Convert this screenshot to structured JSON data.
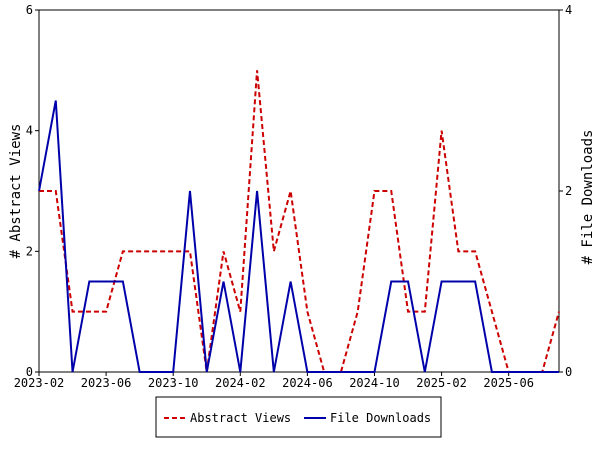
{
  "chart_data": {
    "type": "line",
    "x_start": "2023-02",
    "x": [
      "2023-02",
      "2023-03",
      "2023-04",
      "2023-05",
      "2023-06",
      "2023-07",
      "2023-08",
      "2023-09",
      "2023-10",
      "2023-11",
      "2023-12",
      "2024-01",
      "2024-02",
      "2024-03",
      "2024-04",
      "2024-05",
      "2024-06",
      "2024-07",
      "2024-08",
      "2024-09",
      "2024-10",
      "2024-11",
      "2024-12",
      "2025-01",
      "2025-02",
      "2025-03",
      "2025-04",
      "2025-05",
      "2025-06",
      "2025-07",
      "2025-08",
      "2025-09"
    ],
    "x_ticks": [
      "2023-02",
      "2023-06",
      "2023-10",
      "2024-02",
      "2024-06",
      "2024-10",
      "2025-02",
      "2025-06"
    ],
    "series": [
      {
        "name": "Abstract Views",
        "axis": "left",
        "color": "#cc0000",
        "style": "dashed",
        "values": [
          3,
          3,
          1,
          1,
          1,
          2,
          2,
          2,
          2,
          2,
          0,
          2,
          1,
          5,
          2,
          3,
          1,
          0,
          0,
          1,
          3,
          3,
          1,
          1,
          4,
          2,
          2,
          1,
          0,
          0,
          0,
          1
        ]
      },
      {
        "name": "File Downloads",
        "axis": "right",
        "color": "#0000aa",
        "style": "solid",
        "values": [
          2,
          3,
          0,
          1,
          1,
          1,
          0,
          0,
          0,
          2,
          0,
          1,
          0,
          2,
          0,
          1,
          0,
          0,
          0,
          0,
          0,
          1,
          1,
          0,
          1,
          1,
          1,
          0,
          0,
          0,
          0,
          0
        ]
      }
    ],
    "ylabel": "# Abstract Views",
    "ylabel_right": "# File Downloads",
    "ylim": [
      0,
      6
    ],
    "yticks": [
      "0",
      "2",
      "4",
      "6"
    ],
    "ylim_right": [
      0,
      4
    ],
    "yticks_right": [
      "0",
      "2",
      "4"
    ],
    "grid": false,
    "legend_position": "bottom-center"
  }
}
